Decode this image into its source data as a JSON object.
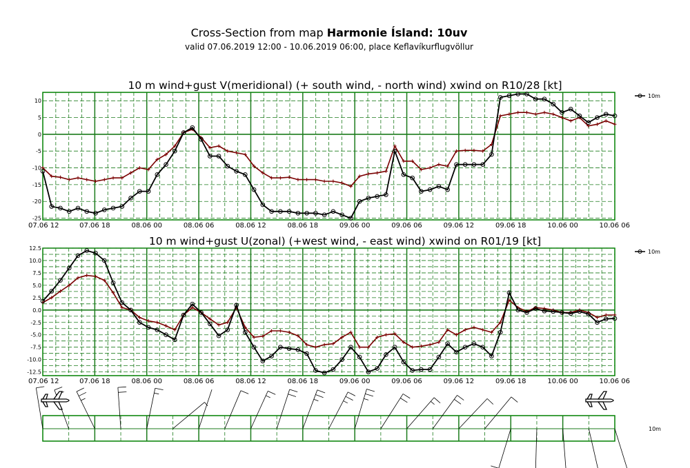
{
  "header": {
    "title_prefix": "Cross-Section from map ",
    "title_bold": "Harmonie Ísland: 10uv",
    "subtitle": "valid 07.06.2019 12:00 - 10.06.2019 06:00, place Keflavíkurflugvöllur"
  },
  "colors": {
    "wind": "#000000",
    "gust": "#7a0000",
    "grid": "#1a7a1a",
    "frame": "#008000"
  },
  "icons": {
    "left": "airplane-icon",
    "right": "airplane-icon"
  },
  "chart_data": [
    {
      "type": "line",
      "title": "10 m wind+gust V(meridional) (+ south wind, - north wind) xwind on R10/28 [kt]",
      "x_start": "07.06 12",
      "x_end": "10.06 06",
      "x_step_hours": 1.5,
      "x_tick_labels": [
        "07.06 12",
        "07.06 18",
        "08.06 00",
        "08.06 06",
        "08.06 12",
        "08.06 18",
        "09.06 00",
        "09.06 06",
        "09.06 12",
        "09.06 18",
        "10.06 00",
        "10.06 06"
      ],
      "ylim": [
        -25.5,
        12.5
      ],
      "y_ticks": [
        -25,
        -20,
        -15,
        -10,
        -5,
        0,
        5,
        10
      ],
      "legend": [
        {
          "name": "10m",
          "position": "top-right"
        }
      ],
      "series": [
        {
          "name": "10m",
          "values": [
            -11,
            -21.5,
            -22,
            -23,
            -22,
            -23,
            -23.5,
            -22.5,
            -22,
            -21.5,
            -19,
            -17,
            -17,
            -12,
            -9,
            -5,
            0.5,
            2,
            -1.5,
            -6.5,
            -6.5,
            -9.5,
            -11,
            -12,
            -16.5,
            -21,
            -23,
            -23,
            -23,
            -23.5,
            -23.5,
            -23.5,
            -24,
            -23,
            -24,
            -25,
            -20,
            -19,
            -18.5,
            -18,
            -5,
            -12,
            -13,
            -17,
            -16.5,
            -15.5,
            -16.5,
            -9,
            -9,
            -9,
            -9,
            -6,
            11,
            11.5,
            12,
            12,
            10.5,
            10.5,
            9,
            6.5,
            7.5,
            5.5,
            3.5,
            5,
            6,
            5.5
          ]
        },
        {
          "values": [
            -10,
            -12.5,
            -12.8,
            -13.5,
            -13,
            -13.5,
            -14,
            -13.5,
            -13,
            -13,
            -11.5,
            -10,
            -10.5,
            -7.5,
            -6,
            -3.5,
            0.5,
            1.5,
            -1,
            -4,
            -3.5,
            -5,
            -5.5,
            -6,
            -9.5,
            -11.5,
            -13,
            -13,
            -12.8,
            -13.5,
            -13.5,
            -13.5,
            -14,
            -14,
            -14.5,
            -15.5,
            -12.5,
            -11.8,
            -11.5,
            -11,
            -3.5,
            -8,
            -8,
            -10.5,
            -10,
            -9,
            -9.5,
            -5,
            -4.8,
            -4.8,
            -5,
            -3,
            5.5,
            6,
            6.5,
            6.5,
            6,
            6.5,
            6,
            5,
            4,
            5,
            2.5,
            3,
            4,
            3
          ]
        }
      ]
    },
    {
      "type": "line",
      "title": "10 m wind+gust U(zonal) (+west wind, - east wind) xwind on R01/19 [kt]",
      "x_start": "07.06 12",
      "x_end": "10.06 06",
      "x_step_hours": 1.5,
      "x_tick_labels": [
        "07.06 12",
        "07.06 18",
        "08.06 00",
        "08.06 06",
        "08.06 12",
        "08.06 18",
        "09.06 00",
        "09.06 06",
        "09.06 12",
        "09.06 18",
        "10.06 00",
        "10.06 06"
      ],
      "ylim": [
        -13.25,
        12.5
      ],
      "y_ticks": [
        -12.5,
        -10.0,
        -7.5,
        -5.0,
        -2.5,
        0.0,
        2.5,
        5.0,
        7.5,
        10.0,
        12.5
      ],
      "legend": [
        {
          "name": "10m",
          "position": "top-right"
        }
      ],
      "series": [
        {
          "name": "10m",
          "values": [
            1.8,
            3.8,
            6,
            8.5,
            11,
            12,
            11.5,
            10,
            5.5,
            1.5,
            0,
            -2.5,
            -3.5,
            -4,
            -5,
            -6,
            -1,
            1.2,
            -0.5,
            -2.8,
            -5.2,
            -4,
            1,
            -4.5,
            -7.5,
            -10.3,
            -9.3,
            -7.5,
            -7.8,
            -8,
            -8.8,
            -12.2,
            -12.7,
            -12,
            -10,
            -7.5,
            -9.5,
            -12.5,
            -11.8,
            -9,
            -7.5,
            -10.5,
            -12.2,
            -12,
            -12,
            -9.5,
            -6.8,
            -8.5,
            -7.5,
            -6.8,
            -7.5,
            -9.3,
            -4.5,
            3.5,
            0,
            -0.5,
            0.3,
            -0.2,
            -0.3,
            -0.5,
            -0.7,
            -0.3,
            -0.8,
            -2.5,
            -1.8,
            -1.7
          ]
        },
        {
          "values": [
            1.5,
            2.5,
            3.8,
            5,
            6.5,
            7,
            6.8,
            6,
            3.5,
            0.5,
            0,
            -1.5,
            -2.2,
            -2.5,
            -3.2,
            -4,
            -1,
            0.5,
            -0.5,
            -1.8,
            -3,
            -2.5,
            0.5,
            -3.5,
            -5.5,
            -5.3,
            -4.2,
            -4.2,
            -4.5,
            -5.2,
            -7,
            -7.5,
            -7,
            -6.8,
            -5.5,
            -4.5,
            -7.5,
            -7.5,
            -5.5,
            -5,
            -4.8,
            -6.5,
            -7.5,
            -7.3,
            -7,
            -6.5,
            -4,
            -5,
            -4,
            -3.5,
            -4,
            -4.5,
            -2.5,
            2,
            0.5,
            -0.3,
            0.5,
            0.3,
            0,
            -0.5,
            -0.5,
            0,
            -0.5,
            -1.5,
            -1,
            -1
          ]
        }
      ]
    }
  ]
}
